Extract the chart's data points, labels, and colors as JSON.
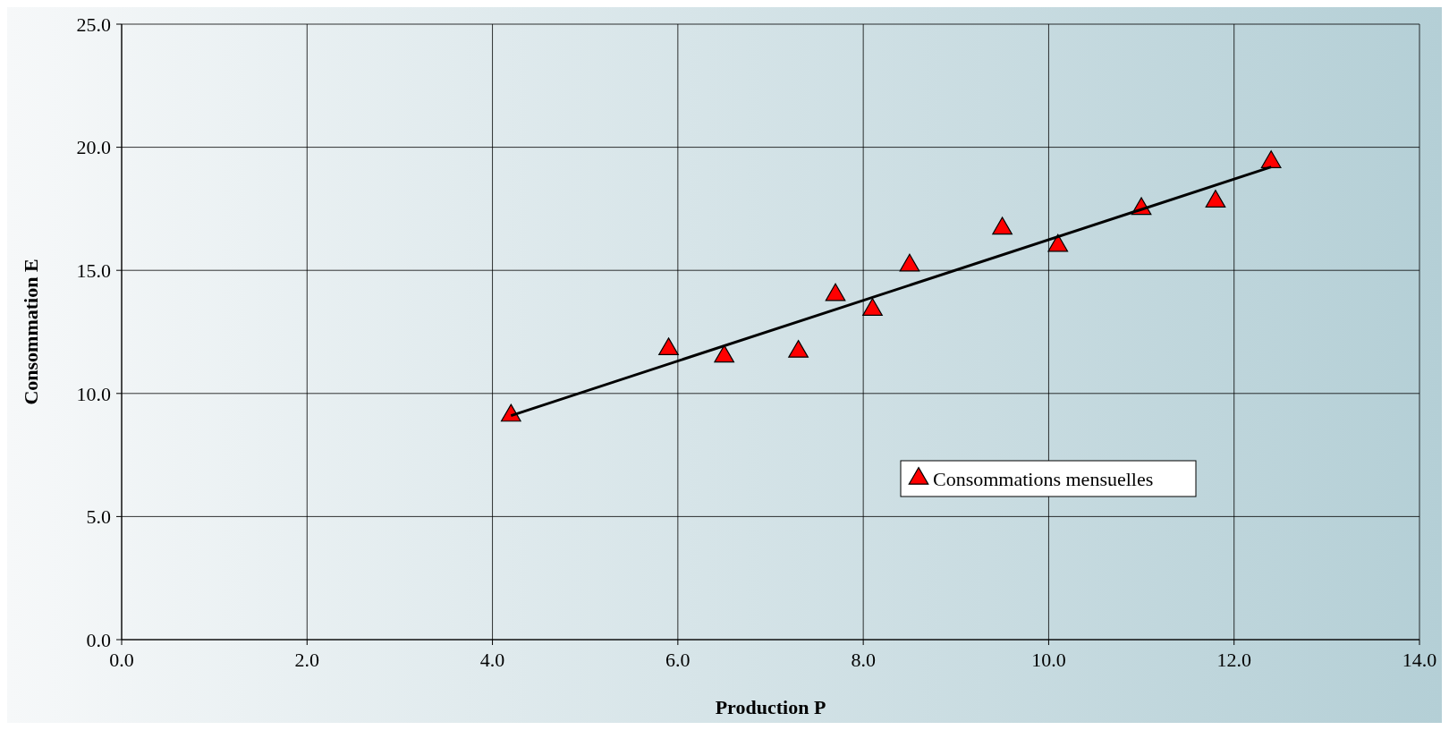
{
  "chart_data": {
    "type": "scatter",
    "xlabel": "Production P",
    "ylabel": "Consommation E",
    "xlim": [
      0,
      14
    ],
    "xticks": [
      {
        "value": 0,
        "label": "0.0"
      },
      {
        "value": 2,
        "label": "2.0"
      },
      {
        "value": 4,
        "label": "4.0"
      },
      {
        "value": 6,
        "label": "6.0"
      },
      {
        "value": 8,
        "label": "8.0"
      },
      {
        "value": 10,
        "label": "10.0"
      },
      {
        "value": 12,
        "label": "12.0"
      },
      {
        "value": 14,
        "label": "14.0"
      }
    ],
    "ylim": [
      0,
      25
    ],
    "yticks": [
      {
        "value": 0,
        "label": "0.0"
      },
      {
        "value": 5,
        "label": "5.0"
      },
      {
        "value": 10,
        "label": "10.0"
      },
      {
        "value": 15,
        "label": "15.0"
      },
      {
        "value": 20,
        "label": "20.0"
      },
      {
        "value": 25,
        "label": "25.0"
      }
    ],
    "grid": true,
    "legend": "bottom right",
    "series": [
      {
        "name": "Consommations mensuelles",
        "color": "#ff0000",
        "marker": "triangle",
        "x": [
          4.2,
          5.9,
          6.5,
          7.3,
          7.7,
          8.1,
          8.5,
          9.5,
          10.1,
          11.0,
          11.8,
          12.4
        ],
        "values": [
          9.1,
          11.8,
          11.5,
          11.7,
          14.0,
          13.4,
          15.2,
          16.7,
          16.0,
          17.5,
          17.8,
          19.4
        ]
      },
      {
        "type": "line",
        "color": "#000000",
        "marker": "none",
        "line_style": "solid",
        "x": [
          4.2,
          12.4
        ],
        "values": [
          9.1,
          19.2
        ]
      }
    ]
  }
}
